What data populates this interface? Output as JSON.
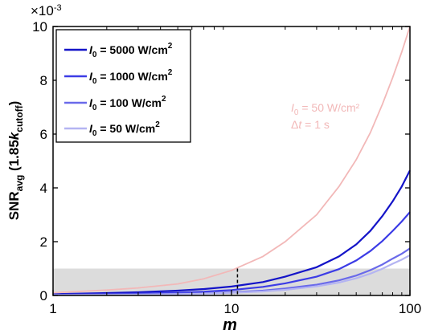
{
  "chart_data": {
    "type": "line",
    "exponent_label": "×10",
    "exponent_power": "-3",
    "xscale": "log",
    "xlim": [
      1,
      100
    ],
    "ylim": [
      0,
      10
    ],
    "x_ticks": [
      "1",
      "10",
      "100"
    ],
    "y_ticks": [
      "0",
      "2",
      "4",
      "6",
      "8",
      "10"
    ],
    "xlabel": "m",
    "ylabel_main": "SNR",
    "ylabel_sub": "avg",
    "ylabel_rest1": " (1.85",
    "ylabel_k": "k",
    "ylabel_ksub": "cutoff",
    "ylabel_rest2": ")",
    "threshold": {
      "y": 1.0,
      "x_cross": 10.8,
      "shade_color": "#dcdcdc"
    },
    "legend_position": "top-left",
    "series": [
      {
        "name": "I0 = 5000 W/cm2",
        "legend_I": "I",
        "legend_sub": "0",
        "legend_mid": " = 5000 W/cm",
        "legend_sup": "2",
        "color": "#1414c8",
        "x": [
          1,
          2,
          3,
          5,
          7,
          10,
          15,
          20,
          30,
          40,
          50,
          60,
          70,
          80,
          90,
          100
        ],
        "y": [
          0.05,
          0.09,
          0.12,
          0.18,
          0.24,
          0.33,
          0.5,
          0.7,
          1.05,
          1.45,
          1.9,
          2.4,
          2.95,
          3.5,
          4.05,
          4.65
        ]
      },
      {
        "name": "I0 = 1000 W/cm2",
        "legend_I": "I",
        "legend_sub": "0",
        "legend_mid": " = 1000 W/cm",
        "legend_sup": "2",
        "color": "#3c3ce6",
        "x": [
          1,
          2,
          3,
          5,
          7,
          10,
          15,
          20,
          30,
          40,
          50,
          60,
          70,
          80,
          90,
          100
        ],
        "y": [
          0.03,
          0.05,
          0.07,
          0.1,
          0.14,
          0.2,
          0.32,
          0.45,
          0.7,
          0.98,
          1.3,
          1.65,
          2.02,
          2.4,
          2.75,
          3.1
        ]
      },
      {
        "name": "I0 = 100 W/cm2",
        "legend_I": "I",
        "legend_sub": "0",
        "legend_mid": " = 100 W/cm",
        "legend_sup": "2",
        "color": "#6a6aea",
        "x": [
          1,
          2,
          3,
          5,
          7,
          10,
          15,
          20,
          30,
          40,
          50,
          60,
          70,
          80,
          90,
          100
        ],
        "y": [
          0.02,
          0.03,
          0.04,
          0.06,
          0.08,
          0.12,
          0.18,
          0.26,
          0.4,
          0.56,
          0.74,
          0.94,
          1.15,
          1.37,
          1.55,
          1.75
        ]
      },
      {
        "name": "I0 = 50 W/cm2",
        "legend_I": "I",
        "legend_sub": "0",
        "legend_mid": " = 50 W/cm",
        "legend_sup": "2",
        "color": "#b4b4f2",
        "x": [
          1,
          2,
          3,
          5,
          7,
          10,
          15,
          20,
          30,
          40,
          50,
          60,
          70,
          80,
          90,
          100
        ],
        "y": [
          0.01,
          0.02,
          0.03,
          0.05,
          0.07,
          0.1,
          0.15,
          0.21,
          0.34,
          0.48,
          0.64,
          0.81,
          0.99,
          1.18,
          1.33,
          1.5
        ]
      },
      {
        "name": "I0 = 50 W/cm2, Δt = 1 s",
        "color": "#f2b8b8",
        "annot_line1_I": "I",
        "annot_line1_sub": "0",
        "annot_line1_rest": " = 50 W/cm²",
        "annot_line2_pre": "Δ",
        "annot_line2_t": "t",
        "annot_line2_rest": " = 1 s",
        "x": [
          1,
          2,
          3,
          5,
          7,
          10,
          15,
          20,
          30,
          40,
          50,
          60,
          70,
          80,
          90,
          100
        ],
        "y": [
          0.1,
          0.2,
          0.28,
          0.43,
          0.62,
          0.93,
          1.45,
          2.0,
          3.0,
          4.05,
          5.05,
          6.05,
          7.1,
          8.1,
          9.05,
          10.0
        ]
      }
    ]
  }
}
